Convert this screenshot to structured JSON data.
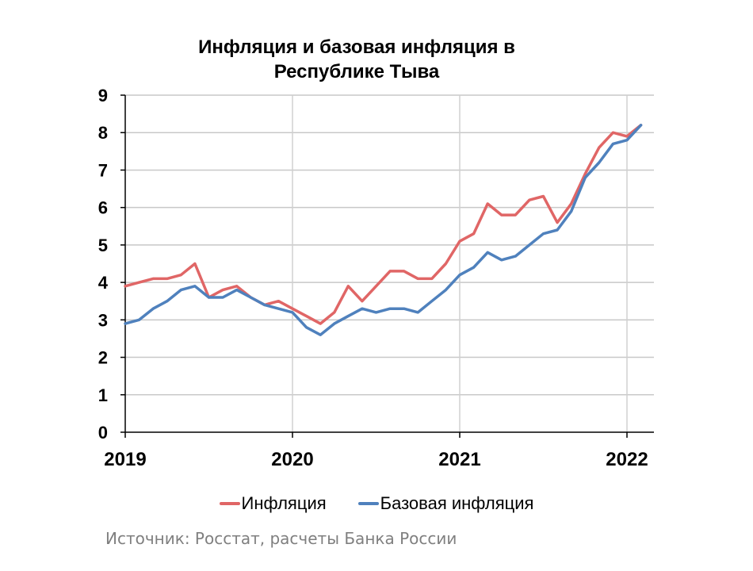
{
  "chart_data": {
    "type": "line",
    "title": "Инфляция и базовая инфляция в Республике Тыва",
    "title_lines": [
      "Инфляция и базовая инфляция в",
      "Республике Тыва"
    ],
    "xlabel": "",
    "ylabel": "",
    "ylim": [
      0,
      9
    ],
    "yticks": [
      "0",
      "1",
      "2",
      "3",
      "4",
      "5",
      "6",
      "7",
      "8",
      "9"
    ],
    "xticks": [
      "2019",
      "2020",
      "2021",
      "2022"
    ],
    "grid": true,
    "legend_position": "bottom",
    "x_start": "2019-01",
    "x_step": "month",
    "series": [
      {
        "name": "Инфляция",
        "color": "#e06666",
        "values": [
          3.9,
          4.0,
          4.1,
          4.1,
          4.2,
          4.5,
          3.6,
          3.8,
          3.9,
          3.6,
          3.4,
          3.5,
          3.3,
          3.1,
          2.9,
          3.2,
          3.9,
          3.5,
          3.9,
          4.3,
          4.3,
          4.1,
          4.1,
          4.5,
          5.1,
          5.3,
          6.1,
          5.8,
          5.8,
          6.2,
          6.3,
          5.6,
          6.1,
          6.9,
          7.6,
          8.0,
          7.9,
          8.2
        ]
      },
      {
        "name": "Базовая инфляция",
        "color": "#4f81bd",
        "values": [
          2.9,
          3.0,
          3.3,
          3.5,
          3.8,
          3.9,
          3.6,
          3.6,
          3.8,
          3.6,
          3.4,
          3.3,
          3.2,
          2.8,
          2.6,
          2.9,
          3.1,
          3.3,
          3.2,
          3.3,
          3.3,
          3.2,
          3.5,
          3.8,
          4.2,
          4.4,
          4.8,
          4.6,
          4.7,
          5.0,
          5.3,
          5.4,
          5.9,
          6.8,
          7.2,
          7.7,
          7.8,
          8.2
        ]
      }
    ]
  },
  "legend": {
    "items": [
      "Инфляция",
      "Базовая инфляция"
    ]
  },
  "source": "Источник: Росстат, расчеты Банка России"
}
